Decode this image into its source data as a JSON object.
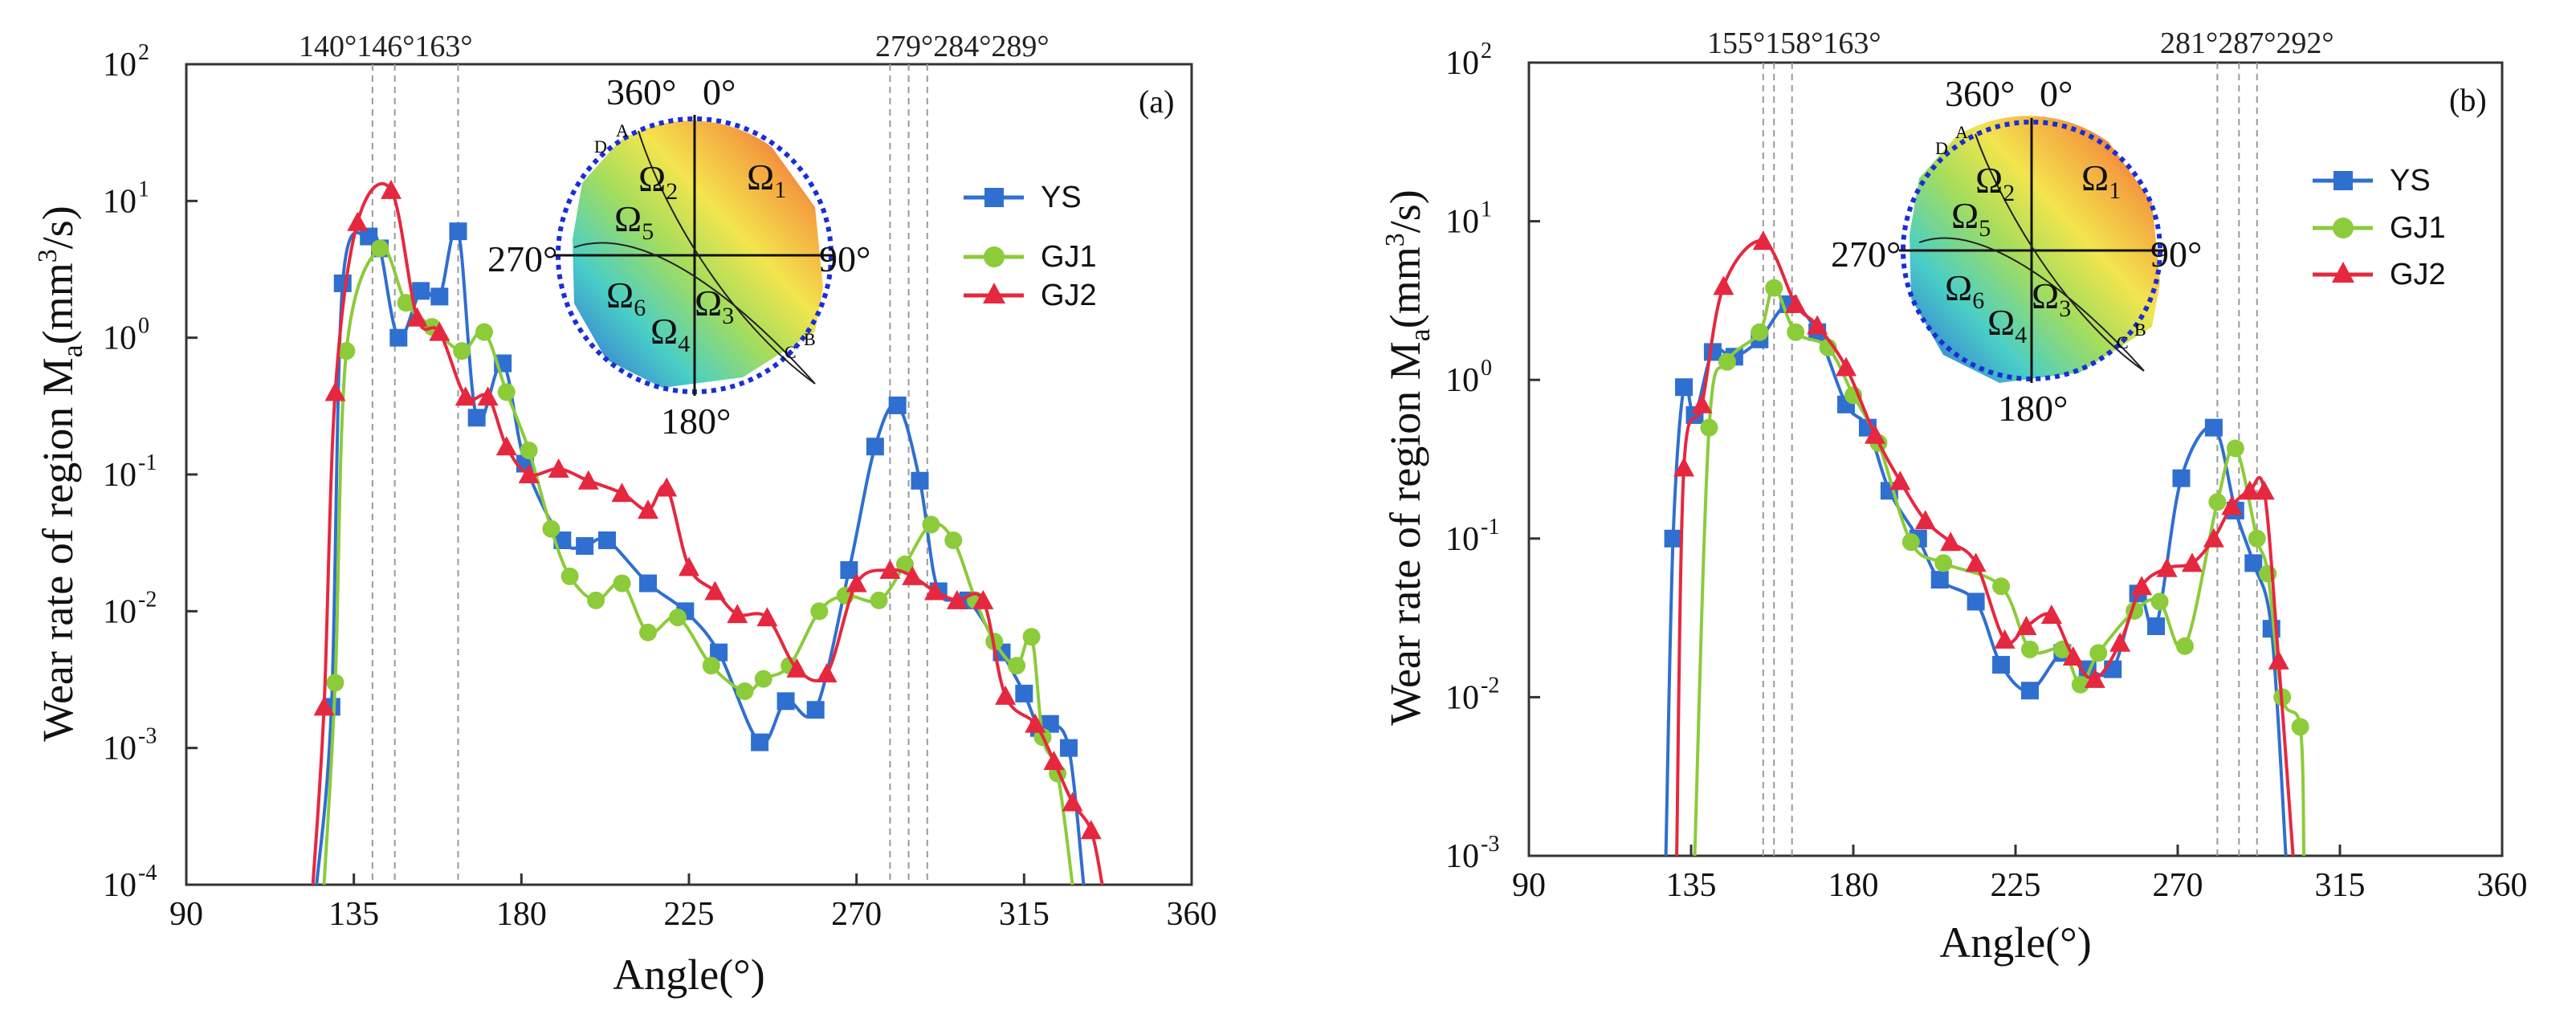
{
  "colors": {
    "YS": "#2f6fd0",
    "GJ1": "#8ccb3a",
    "GJ2": "#e5283f",
    "axis": "#333333",
    "ref": "#9a9a9a",
    "ring": "#1a2ed6"
  },
  "chart_data": [
    {
      "type": "line",
      "panel_label": "(a)",
      "xlabel": "Angle(°)",
      "ylabel": "Wear rate of region M",
      "ylabel_sub": "a",
      "ylabel_unit_pre": "(mm",
      "ylabel_unit_sup": "3",
      "ylabel_unit_post": "/s)",
      "xlim": [
        90,
        360
      ],
      "xticks": [
        "90",
        "135",
        "180",
        "225",
        "270",
        "315",
        "360"
      ],
      "ylim_exp": [
        -4,
        2
      ],
      "yticks": [
        "10",
        "10",
        "10",
        "10",
        "10",
        "10",
        "10"
      ],
      "ytick_exp": [
        "-4",
        "-3",
        "-2",
        "-1",
        "0",
        "1",
        "2"
      ],
      "ref_lines": [
        140,
        146,
        163,
        279,
        284,
        289
      ],
      "ref_labels": "140°146°163°",
      "ref_labels2": "279°284°289°",
      "legend": [
        "YS",
        "GJ1",
        "GJ2"
      ],
      "series": [
        {
          "name": "YS",
          "points": [
            [
              125,
              0.0001
            ],
            [
              129,
              0.002
            ],
            [
              132,
              2.5
            ],
            [
              139,
              5.5
            ],
            [
              142,
              4.5
            ],
            [
              147,
              1.0
            ],
            [
              153,
              2.2
            ],
            [
              158,
              2.0
            ],
            [
              163,
              6.0
            ],
            [
              168,
              0.26
            ],
            [
              175,
              0.65
            ],
            [
              181,
              0.12
            ],
            [
              191,
              0.033
            ],
            [
              197,
              0.03
            ],
            [
              203,
              0.033
            ],
            [
              214,
              0.016
            ],
            [
              224,
              0.01
            ],
            [
              233,
              0.005
            ],
            [
              244,
              0.0011
            ],
            [
              251,
              0.0022
            ],
            [
              259,
              0.0019
            ],
            [
              268,
              0.02
            ],
            [
              275,
              0.16
            ],
            [
              281,
              0.32
            ],
            [
              287,
              0.09
            ],
            [
              292,
              0.014
            ],
            [
              300,
              0.012
            ],
            [
              309,
              0.005
            ],
            [
              315,
              0.0025
            ],
            [
              319,
              0.0014
            ],
            [
              322,
              0.0015
            ],
            [
              327,
              0.001
            ],
            [
              331,
              0.0001
            ]
          ]
        },
        {
          "name": "GJ1",
          "points": [
            [
              127,
              0.0001
            ],
            [
              130,
              0.003
            ],
            [
              133,
              0.8
            ],
            [
              142,
              4.5
            ],
            [
              149,
              1.8
            ],
            [
              156,
              1.2
            ],
            [
              164,
              0.8
            ],
            [
              170,
              1.1
            ],
            [
              176,
              0.4
            ],
            [
              182,
              0.15
            ],
            [
              188,
              0.04
            ],
            [
              193,
              0.018
            ],
            [
              200,
              0.012
            ],
            [
              207,
              0.016
            ],
            [
              214,
              0.007
            ],
            [
              222,
              0.009
            ],
            [
              231,
              0.004
            ],
            [
              240,
              0.0026
            ],
            [
              245,
              0.0032
            ],
            [
              252,
              0.004
            ],
            [
              260,
              0.01
            ],
            [
              267,
              0.013
            ],
            [
              276,
              0.012
            ],
            [
              283,
              0.022
            ],
            [
              290,
              0.043
            ],
            [
              296,
              0.033
            ],
            [
              302,
              0.012
            ],
            [
              307,
              0.006
            ],
            [
              313,
              0.004
            ],
            [
              317,
              0.0065
            ],
            [
              320,
              0.0012
            ],
            [
              324,
              0.00065
            ],
            [
              328,
              0.0001
            ]
          ]
        },
        {
          "name": "GJ2",
          "points": [
            [
              124,
              0.0001
            ],
            [
              127,
              0.002
            ],
            [
              130,
              0.4
            ],
            [
              136,
              7.0
            ],
            [
              145,
              12.0
            ],
            [
              152,
              1.4
            ],
            [
              158,
              1.1
            ],
            [
              165,
              0.37
            ],
            [
              171,
              0.37
            ],
            [
              176,
              0.16
            ],
            [
              182,
              0.1
            ],
            [
              190,
              0.11
            ],
            [
              198,
              0.09
            ],
            [
              207,
              0.073
            ],
            [
              214,
              0.055
            ],
            [
              219,
              0.08
            ],
            [
              225,
              0.021
            ],
            [
              232,
              0.014
            ],
            [
              238,
              0.0095
            ],
            [
              246,
              0.009
            ],
            [
              254,
              0.0038
            ],
            [
              262,
              0.0035
            ],
            [
              270,
              0.016
            ],
            [
              279,
              0.02
            ],
            [
              285,
              0.018
            ],
            [
              291,
              0.014
            ],
            [
              297,
              0.012
            ],
            [
              304,
              0.012
            ],
            [
              310,
              0.0024
            ],
            [
              318,
              0.0015
            ],
            [
              323,
              0.0008
            ],
            [
              328,
              0.0004
            ],
            [
              333,
              0.00025
            ],
            [
              336,
              0.0001
            ]
          ]
        }
      ]
    },
    {
      "type": "line",
      "panel_label": "(b)",
      "xlabel": "Angle(°)",
      "ylabel": "Wear rate of region M",
      "ylabel_sub": "a",
      "ylabel_unit_pre": "(mm",
      "ylabel_unit_sup": "3",
      "ylabel_unit_post": "/s)",
      "xlim": [
        90,
        360
      ],
      "xticks": [
        "90",
        "135",
        "180",
        "225",
        "270",
        "315",
        "360"
      ],
      "ylim_exp": [
        -3,
        2
      ],
      "yticks": [
        "10",
        "10",
        "10",
        "10",
        "10",
        "10"
      ],
      "ytick_exp": [
        "-3",
        "-2",
        "-1",
        "0",
        "1",
        "2"
      ],
      "ref_lines": [
        155,
        158,
        163,
        281,
        287,
        292
      ],
      "ref_labels": "155°158°163°",
      "ref_labels2": "281°287°292°",
      "legend": [
        "YS",
        "GJ1",
        "GJ2"
      ],
      "series": [
        {
          "name": "YS",
          "points": [
            [
              128,
              0.001
            ],
            [
              130,
              0.1
            ],
            [
              133,
              0.9
            ],
            [
              136,
              0.6
            ],
            [
              141,
              1.5
            ],
            [
              147,
              1.4
            ],
            [
              154,
              1.8
            ],
            [
              162,
              3.0
            ],
            [
              170,
              2.0
            ],
            [
              178,
              0.7
            ],
            [
              184,
              0.5
            ],
            [
              190,
              0.2
            ],
            [
              198,
              0.1
            ],
            [
              204,
              0.055
            ],
            [
              214,
              0.04
            ],
            [
              221,
              0.016
            ],
            [
              229,
              0.011
            ],
            [
              238,
              0.019
            ],
            [
              245,
              0.015
            ],
            [
              252,
              0.015
            ],
            [
              259,
              0.045
            ],
            [
              264,
              0.028
            ],
            [
              271,
              0.24
            ],
            [
              280,
              0.5
            ],
            [
              286,
              0.15
            ],
            [
              291,
              0.07
            ],
            [
              296,
              0.027
            ],
            [
              300,
              0.001
            ]
          ]
        },
        {
          "name": "GJ1",
          "points": [
            [
              136,
              0.001
            ],
            [
              140,
              0.5
            ],
            [
              145,
              1.3
            ],
            [
              154,
              2.0
            ],
            [
              158,
              3.8
            ],
            [
              164,
              2.0
            ],
            [
              173,
              1.6
            ],
            [
              180,
              0.8
            ],
            [
              187,
              0.4
            ],
            [
              196,
              0.095
            ],
            [
              205,
              0.07
            ],
            [
              221,
              0.05
            ],
            [
              229,
              0.02
            ],
            [
              238,
              0.02
            ],
            [
              243,
              0.012
            ],
            [
              248,
              0.019
            ],
            [
              258,
              0.035
            ],
            [
              265,
              0.04
            ],
            [
              272,
              0.021
            ],
            [
              281,
              0.17
            ],
            [
              286,
              0.37
            ],
            [
              292,
              0.1
            ],
            [
              295,
              0.06
            ],
            [
              299,
              0.01
            ],
            [
              304,
              0.0065
            ],
            [
              305,
              0.001
            ]
          ]
        },
        {
          "name": "GJ2",
          "points": [
            [
              131,
              0.001
            ],
            [
              133,
              0.28
            ],
            [
              138,
              0.7
            ],
            [
              144,
              3.9
            ],
            [
              155,
              7.5
            ],
            [
              164,
              3.0
            ],
            [
              170,
              2.2
            ],
            [
              178,
              1.2
            ],
            [
              186,
              0.45
            ],
            [
              193,
              0.23
            ],
            [
              200,
              0.13
            ],
            [
              207,
              0.095
            ],
            [
              214,
              0.07
            ],
            [
              222,
              0.023
            ],
            [
              228,
              0.028
            ],
            [
              235,
              0.033
            ],
            [
              241,
              0.018
            ],
            [
              247,
              0.013
            ],
            [
              254,
              0.022
            ],
            [
              260,
              0.05
            ],
            [
              267,
              0.065
            ],
            [
              274,
              0.07
            ],
            [
              280,
              0.1
            ],
            [
              285,
              0.16
            ],
            [
              290,
              0.2
            ],
            [
              294,
              0.2
            ],
            [
              298,
              0.017
            ],
            [
              302,
              0.001
            ]
          ]
        }
      ]
    }
  ],
  "inset": {
    "top_label": "360°",
    "zero_label": "0°",
    "right_label": "90°",
    "left_label": "270°",
    "bottom_label": "180°",
    "omega": "Ω",
    "omega_subs": [
      "1",
      "2",
      "3",
      "4",
      "5",
      "6"
    ],
    "points": [
      "A",
      "B",
      "C",
      "D"
    ]
  }
}
